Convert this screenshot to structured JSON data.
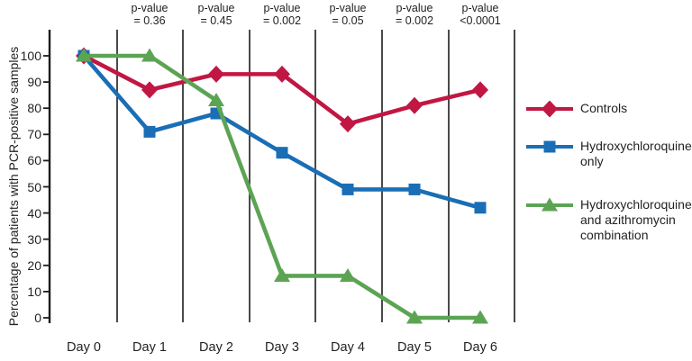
{
  "chart_data": {
    "type": "line",
    "title": "",
    "xlabel": "",
    "ylabel": "Percentage of patients with PCR-positive samples",
    "categories": [
      "Day 0",
      "Day 1",
      "Day 2",
      "Day 3",
      "Day 4",
      "Day 5",
      "Day 6"
    ],
    "ylim": [
      0,
      100
    ],
    "yticks": [
      100,
      90,
      80,
      70,
      60,
      50,
      40,
      30,
      20,
      10,
      0
    ],
    "grid": "vertical day separators only",
    "legend_position": "right",
    "p_values": [
      {
        "prefix": "p-value",
        "value": "= 0.36"
      },
      {
        "prefix": "p-value",
        "value": "= 0.45"
      },
      {
        "prefix": "p-value",
        "value": "= 0.002"
      },
      {
        "prefix": "p-value",
        "value": "= 0.05"
      },
      {
        "prefix": "p-value",
        "value": "= 0.002"
      },
      {
        "prefix": "p-value",
        "value": "<0.0001"
      }
    ],
    "series": [
      {
        "name": "Controls",
        "marker": "diamond",
        "color": "#C11743",
        "values": [
          100,
          87,
          93,
          93,
          74,
          81,
          87
        ]
      },
      {
        "name": "Hydroxychloroquine only",
        "marker": "square",
        "color": "#1A6EB5",
        "values": [
          100,
          71,
          78,
          63,
          49,
          49,
          42
        ]
      },
      {
        "name": "Hydroxychloroquine and azithromycin combination",
        "marker": "triangle",
        "color": "#5CA454",
        "values": [
          100,
          100,
          83,
          16,
          16,
          0,
          0
        ]
      }
    ]
  },
  "colors": {
    "background": "#ffffff",
    "axis": "#1c1c1c",
    "text": "#232323"
  }
}
